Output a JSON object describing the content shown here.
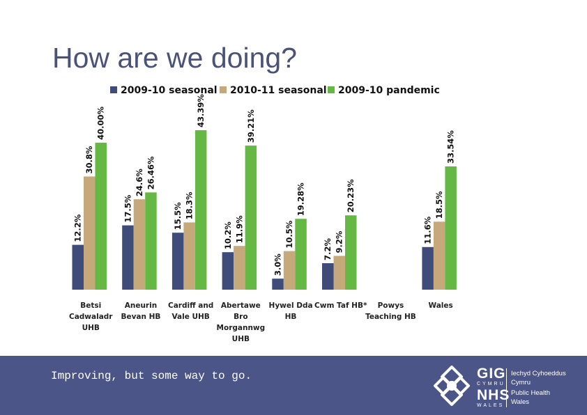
{
  "slide": {
    "title": "How are we doing?",
    "footer_text": "Improving, but some way to go."
  },
  "logo": {
    "gig": "GIG",
    "cymru": "CYMRU",
    "nhs": "NHS",
    "wales": "WALES",
    "org_lines": [
      "Iechyd Cyhoeddus",
      "Cymru",
      "Public Health",
      "Wales"
    ]
  },
  "chart_data": {
    "type": "bar",
    "title": "",
    "xlabel": "",
    "ylabel": "",
    "ylim": [
      0,
      45
    ],
    "grid": false,
    "legend_position": "top",
    "categories": [
      [
        "Betsi",
        "Cadwaladr",
        "UHB"
      ],
      [
        "Aneurin",
        "Bevan HB"
      ],
      [
        "Cardiff and",
        "Vale UHB"
      ],
      [
        "Abertawe",
        "Bro",
        "Morgannwg",
        "UHB"
      ],
      [
        "Hywel Dda",
        "HB"
      ],
      [
        "Cwm Taf HB*"
      ],
      [
        "Powys",
        "Teaching HB"
      ],
      [
        "Wales"
      ]
    ],
    "series": [
      {
        "name": "2009-10 seasonal",
        "color": "#3f4c7a",
        "values": [
          12.2,
          17.5,
          15.5,
          10.2,
          3.0,
          7.2,
          null,
          11.6
        ],
        "labels": [
          "12.2%",
          "17.5%",
          "15.5%",
          "10.2%",
          "3.0%",
          "7.2%",
          null,
          "11.6%"
        ]
      },
      {
        "name": "2010-11 seasonal",
        "color": "#c5a97b",
        "values": [
          30.8,
          24.6,
          18.3,
          11.9,
          10.5,
          9.2,
          null,
          18.5
        ],
        "labels": [
          "30.8%",
          "24.6%",
          "18.3%",
          "11.9%",
          "10.5%",
          "9.2%",
          null,
          "18.5%"
        ]
      },
      {
        "name": "2009-10 pandemic",
        "color": "#66b845",
        "values": [
          40.0,
          26.46,
          43.39,
          39.21,
          19.28,
          20.23,
          null,
          33.54
        ],
        "labels": [
          "40.00%",
          "26.46%",
          "43.39%",
          "39.21%",
          "19.28%",
          "20.23%",
          null,
          "33.54%"
        ]
      }
    ]
  }
}
